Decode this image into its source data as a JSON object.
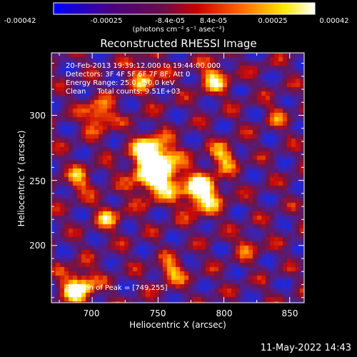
{
  "colorbar": {
    "tick_labels": [
      "-0.00042",
      "-0.00025",
      "-8.4e-05",
      "8.4e-05",
      "0.00025",
      "0.00042"
    ],
    "units": "(photons cm⁻² s⁻¹ asec⁻²)",
    "colors": [
      "#0000ff",
      "#4b0082",
      "#8b0000",
      "#ff0000",
      "#ff8c00",
      "#ffff00",
      "#ffffff"
    ]
  },
  "chart_data": {
    "type": "heatmap",
    "title": "Reconstructed RHESSI Image",
    "xlabel": "Heliocentric X (arcsec)",
    "ylabel": "Heliocentric Y (arcsec)",
    "xlim": [
      669,
      861
    ],
    "ylim": [
      156,
      348
    ],
    "xticks": [
      "700",
      "750",
      "800",
      "850"
    ],
    "yticks": [
      "200",
      "250",
      "300"
    ],
    "info_lines": [
      "20-Feb-2013 19:39:12.000 to 19:44:00.000",
      "Detectors: 3F 4F 5F 6F 7F 8F, Att 0",
      "Energy Range: 25.0 - 50.0 keV",
      "Clean     Total counts: 9.51E+03"
    ],
    "peak_label": "Position of Peak = [749,255]",
    "peak": [
      749,
      255
    ],
    "zlim": [
      -0.00042,
      0.00042
    ]
  },
  "timestamp": "11-May-2022 14:43"
}
